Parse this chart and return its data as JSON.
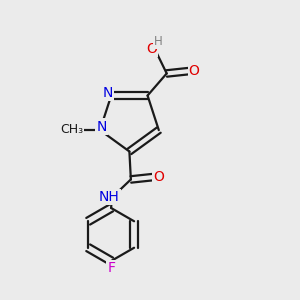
{
  "background_color": "#ebebeb",
  "bond_color": "#1a1a1a",
  "atom_colors": {
    "N": "#0000e0",
    "O": "#e00000",
    "F": "#cc00cc",
    "H": "#808080",
    "C": "#1a1a1a"
  },
  "figsize": [
    3.0,
    3.0
  ],
  "dpi": 100,
  "lw": 1.6,
  "off": 0.011,
  "fs": 10.0
}
